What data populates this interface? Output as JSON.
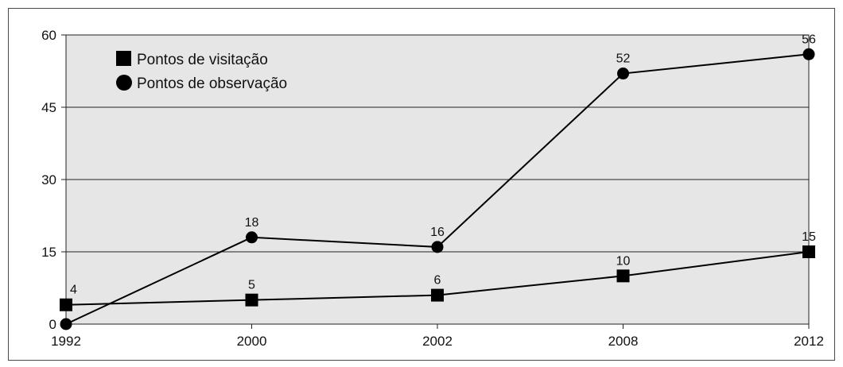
{
  "chart_data": {
    "type": "line",
    "categories": [
      "1992",
      "2000",
      "2002",
      "2008",
      "2012"
    ],
    "y_ticks": [
      "0",
      "15",
      "30",
      "45",
      "60"
    ],
    "ylim": [
      0,
      60
    ],
    "grid": "horizontal",
    "legend_placement": "top-left",
    "background_color": "#e6e6e7",
    "line_color": "#000000",
    "series": [
      {
        "name": "Pontos de visitação",
        "marker": "square",
        "values": [
          4,
          5,
          6,
          10,
          15
        ],
        "labels": [
          "4",
          "5",
          "6",
          "10",
          "15"
        ]
      },
      {
        "name": "Pontos de observação",
        "marker": "circle",
        "values": [
          0,
          18,
          16,
          52,
          56
        ],
        "labels": [
          "",
          "18",
          "16",
          "52",
          "56"
        ]
      }
    ]
  }
}
